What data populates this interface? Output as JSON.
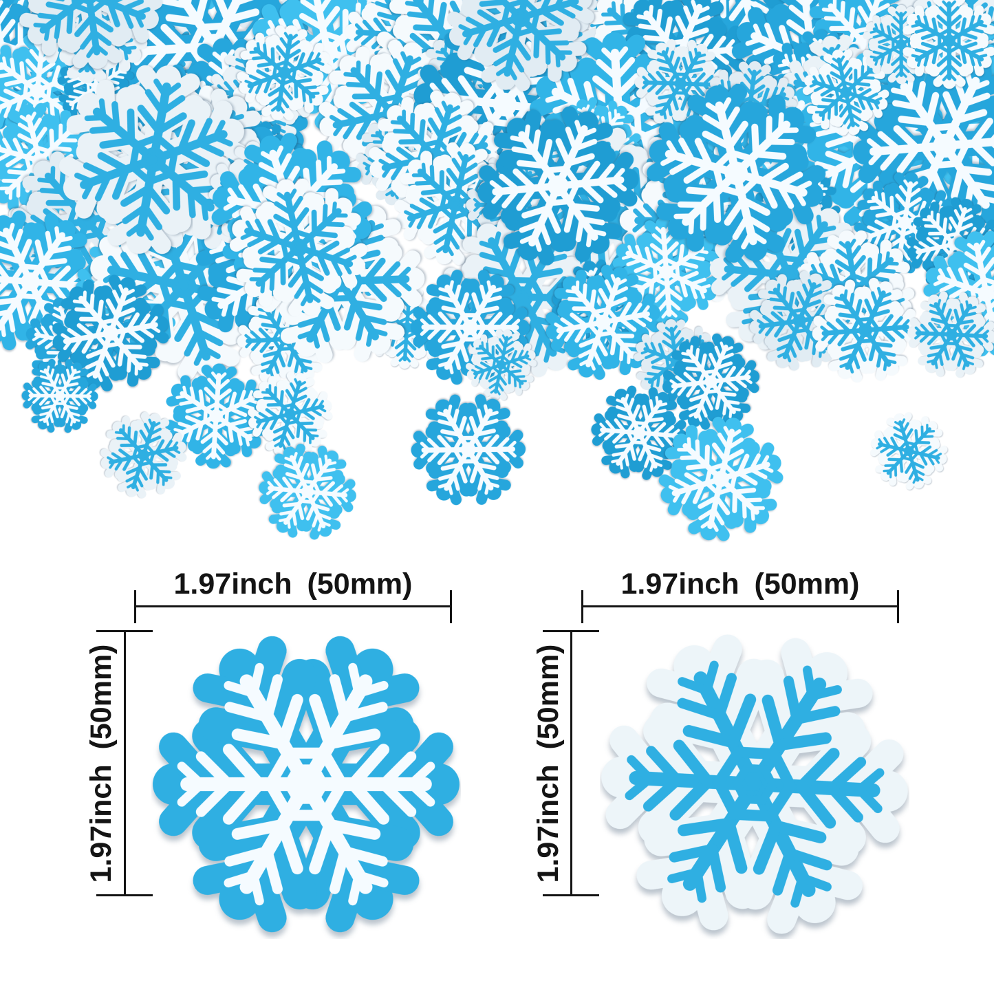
{
  "meta": {
    "description": "Product image of glitter snowflake confetti: a dense pile of blue and white fabric snowflake confetti across the top, and two measured sample snowflakes below with size annotations"
  },
  "colors": {
    "background": "#FFFFFF",
    "annotation": "#141414",
    "blue_main": "#2FAFE2",
    "white_flake": "#EDF5F9"
  },
  "scene": {
    "seed": 11,
    "blue_shades": [
      "#26A6DC",
      "#31B4E7",
      "#3FC0EF",
      "#1F9DD3"
    ],
    "white_shades": [
      "#F5FAFD",
      "#EAF2F7",
      "#E1ECF3"
    ],
    "blue_base": "#2FAFE2",
    "white_base": "#EDF5F9",
    "white_print": "#F5FBFF",
    "blue_print": "#2FAFE2"
  },
  "diagrams": [
    {
      "id": "left-sample",
      "variant": "blue snowflake with white print",
      "width_label": "1.97inch (50mm)",
      "height_label": "1.97inch (50mm)"
    },
    {
      "id": "right-sample",
      "variant": "white snowflake with blue print",
      "width_label": "1.97inch (50mm)",
      "height_label": "1.97inch (50mm)"
    }
  ]
}
